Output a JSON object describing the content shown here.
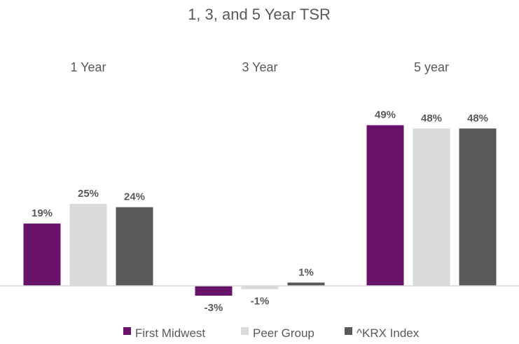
{
  "chart_data": {
    "type": "bar",
    "title": "1, 3, and 5 Year TSR",
    "categories": [
      "1 Year",
      "3 Year",
      "5 year"
    ],
    "series": [
      {
        "name": "First Midwest",
        "values": [
          19,
          -3,
          49
        ],
        "labels": [
          "19%",
          "-3%",
          "49%"
        ],
        "color": "#68126b"
      },
      {
        "name": "Peer Group",
        "values": [
          25,
          -1,
          48
        ],
        "labels": [
          "25%",
          "-1%",
          "48%"
        ],
        "color": "#d9d9d9"
      },
      {
        "name": "^KRX Index",
        "values": [
          24,
          1,
          48
        ],
        "labels": [
          "24%",
          "1%",
          "48%"
        ],
        "color": "#595959"
      }
    ],
    "ylim": [
      -3,
      49
    ],
    "grid": false,
    "legend": "bottom",
    "xlabel": "",
    "ylabel": ""
  }
}
